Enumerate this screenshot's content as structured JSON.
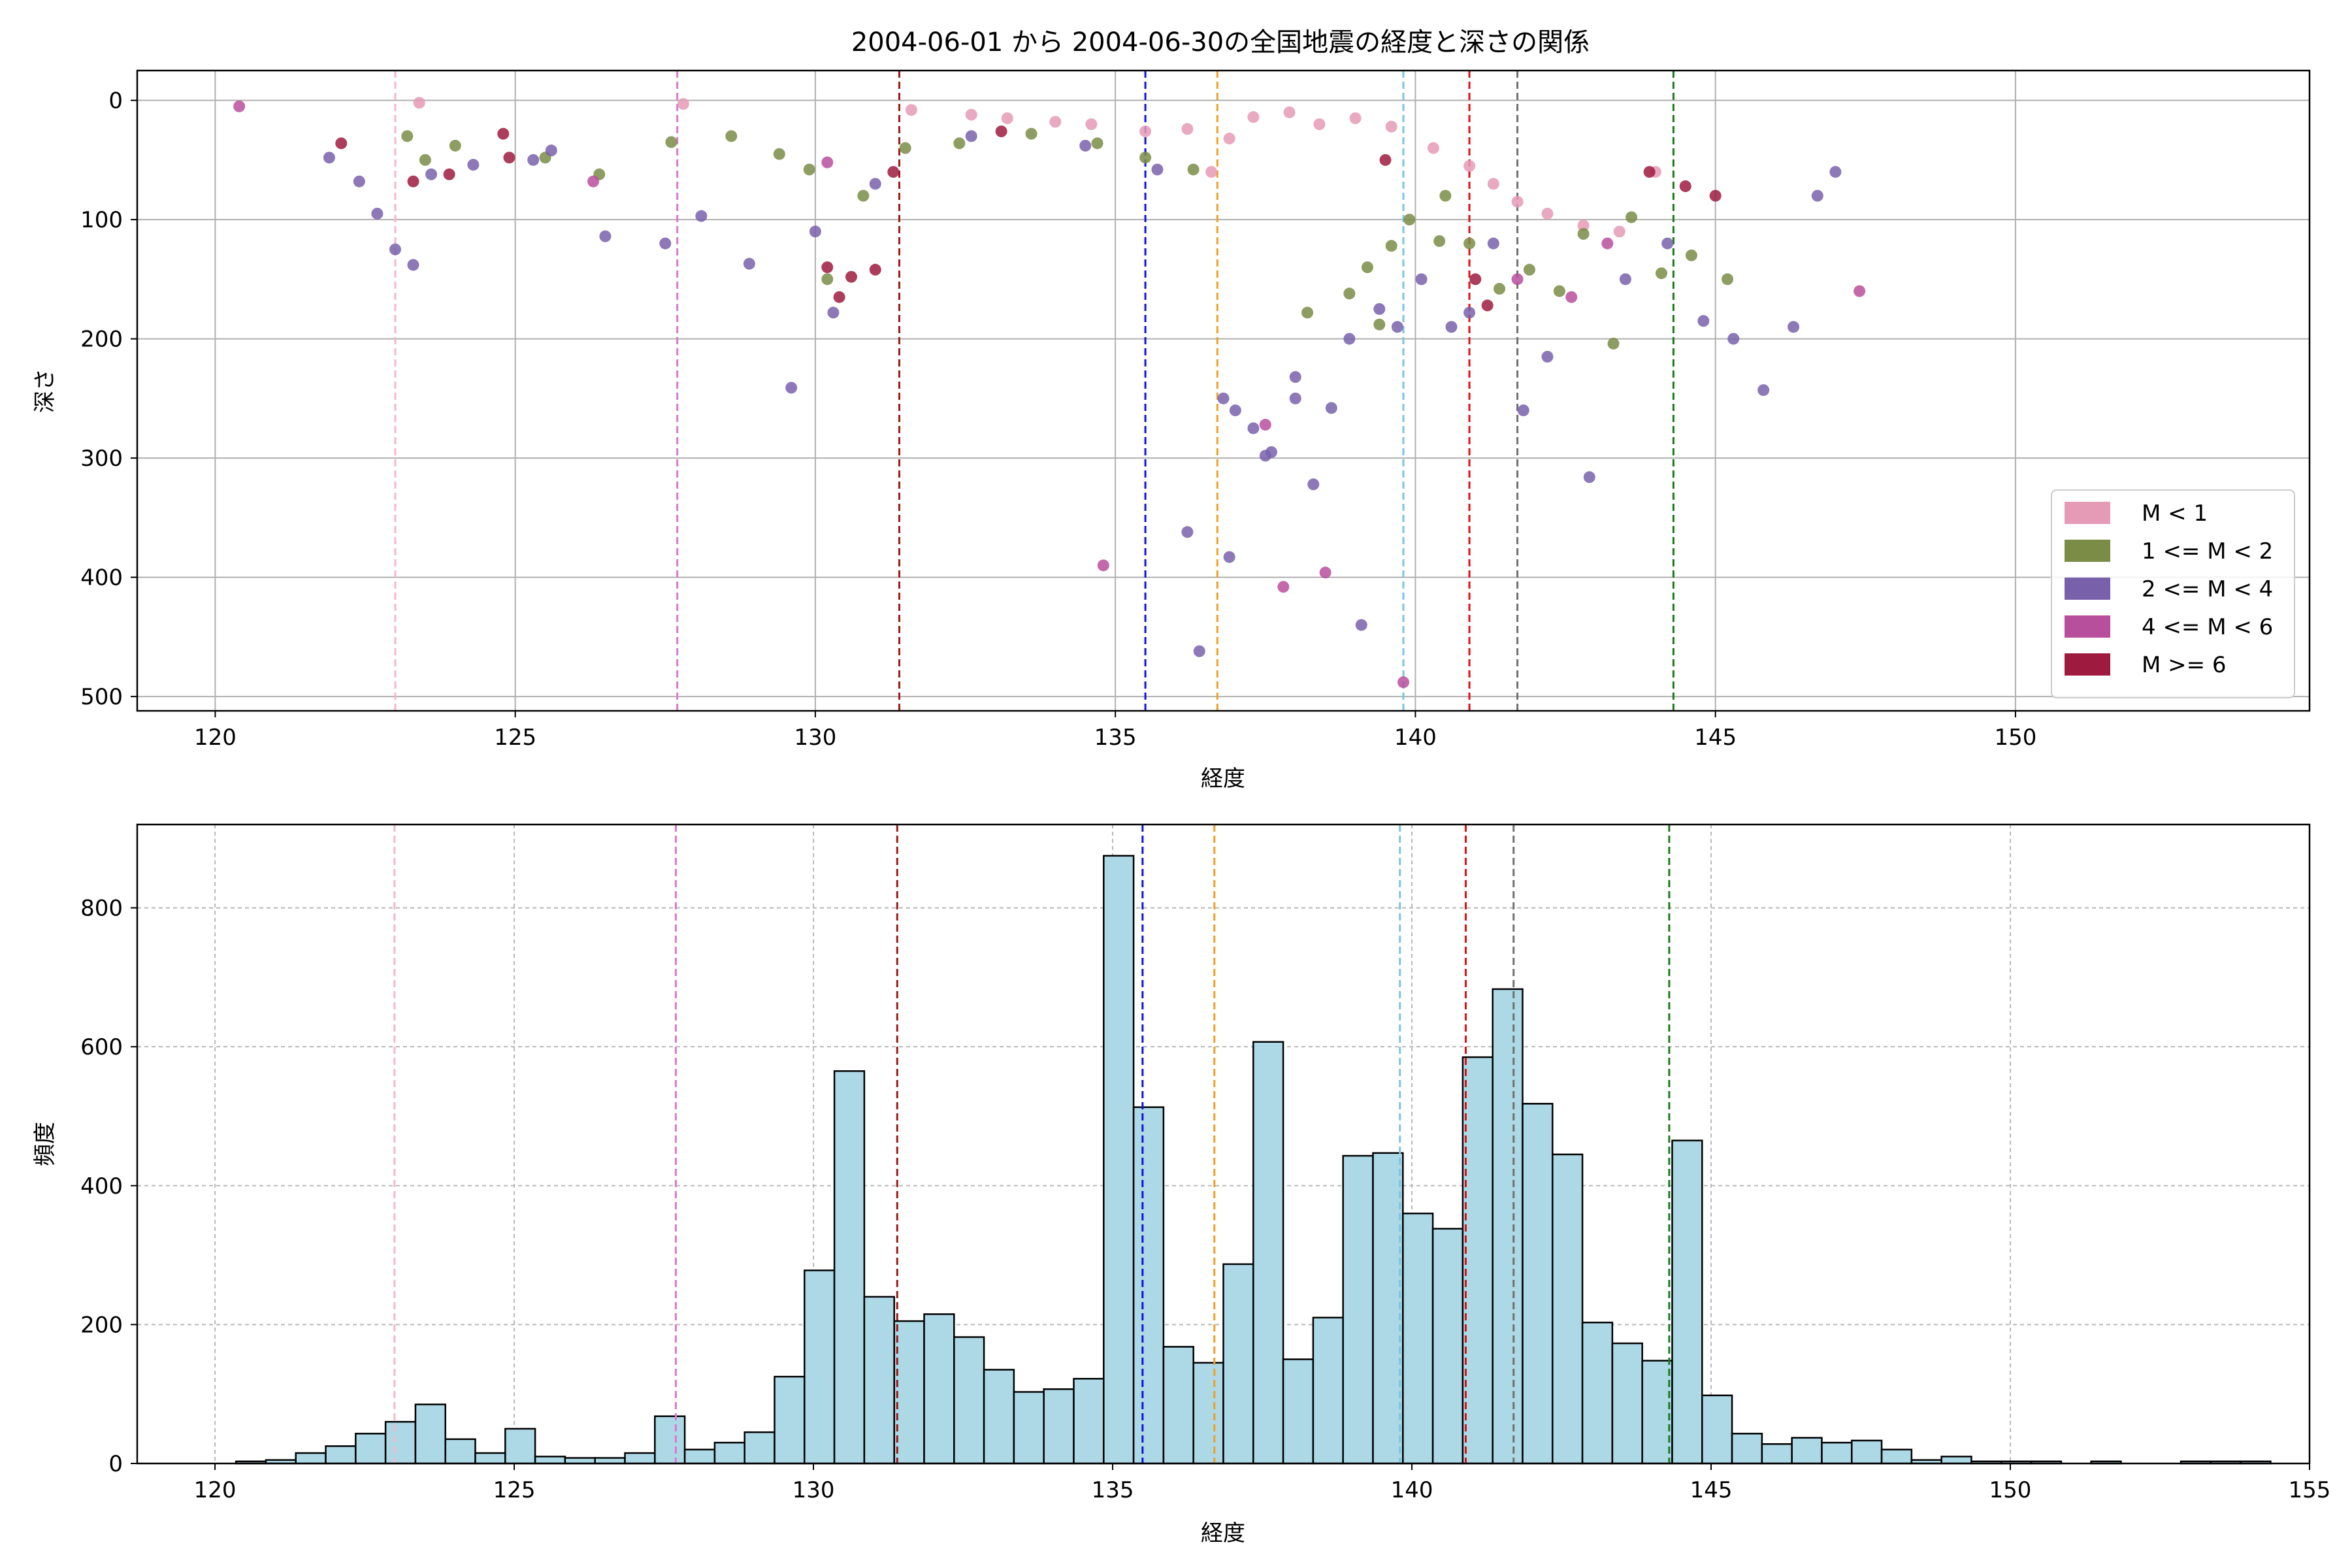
{
  "chart_data": [
    {
      "type": "scatter",
      "title": "2004-06-01 から 2004-06-30の全国地震の経度と深さの関係",
      "xlabel": "経度",
      "ylabel": "深さ",
      "xlim": [
        118.7,
        154.9
      ],
      "ylim": [
        512,
        -25
      ],
      "y_inverted": true,
      "x_ticks": [
        120,
        125,
        130,
        135,
        140,
        145,
        150
      ],
      "y_ticks": [
        0,
        100,
        200,
        300,
        400,
        500
      ],
      "grid": true,
      "legend_position": "lower-right",
      "series": [
        {
          "name": "M < 1",
          "color": "#e59ab6",
          "points": [
            [
              123.4,
              2
            ],
            [
              127.8,
              3
            ],
            [
              131.6,
              8
            ],
            [
              132.6,
              12
            ],
            [
              133.2,
              15
            ],
            [
              134.0,
              18
            ],
            [
              134.6,
              20
            ],
            [
              135.5,
              26
            ],
            [
              136.2,
              24
            ],
            [
              136.9,
              32
            ],
            [
              137.3,
              14
            ],
            [
              137.9,
              10
            ],
            [
              138.4,
              20
            ],
            [
              139.0,
              15
            ],
            [
              139.6,
              22
            ],
            [
              140.3,
              40
            ],
            [
              140.9,
              55
            ],
            [
              141.3,
              70
            ],
            [
              141.7,
              85
            ],
            [
              142.2,
              95
            ],
            [
              142.8,
              105
            ],
            [
              143.4,
              110
            ],
            [
              144.0,
              60
            ],
            [
              136.6,
              60
            ]
          ]
        },
        {
          "name": "1 <= M < 2",
          "color": "#7a8c45",
          "points": [
            [
              123.2,
              30
            ],
            [
              123.5,
              50
            ],
            [
              124.0,
              38
            ],
            [
              125.5,
              48
            ],
            [
              126.4,
              62
            ],
            [
              127.6,
              35
            ],
            [
              128.6,
              30
            ],
            [
              129.4,
              45
            ],
            [
              129.9,
              58
            ],
            [
              130.2,
              150
            ],
            [
              130.8,
              80
            ],
            [
              131.5,
              40
            ],
            [
              132.4,
              36
            ],
            [
              133.6,
              28
            ],
            [
              134.7,
              36
            ],
            [
              135.5,
              48
            ],
            [
              136.3,
              58
            ],
            [
              138.9,
              162
            ],
            [
              139.2,
              140
            ],
            [
              139.6,
              122
            ],
            [
              139.9,
              100
            ],
            [
              140.5,
              80
            ],
            [
              140.9,
              120
            ],
            [
              141.4,
              158
            ],
            [
              141.9,
              142
            ],
            [
              142.4,
              160
            ],
            [
              142.8,
              112
            ],
            [
              143.6,
              98
            ],
            [
              144.1,
              145
            ],
            [
              144.6,
              130
            ],
            [
              145.2,
              150
            ],
            [
              138.2,
              178
            ],
            [
              143.3,
              204
            ],
            [
              140.4,
              118
            ],
            [
              139.4,
              188
            ]
          ]
        },
        {
          "name": "2 <= M < 4",
          "color": "#7960ab",
          "points": [
            [
              121.9,
              48
            ],
            [
              122.4,
              68
            ],
            [
              122.7,
              95
            ],
            [
              123.0,
              125
            ],
            [
              123.3,
              138
            ],
            [
              123.6,
              62
            ],
            [
              124.3,
              54
            ],
            [
              125.3,
              50
            ],
            [
              125.6,
              42
            ],
            [
              126.5,
              114
            ],
            [
              127.5,
              120
            ],
            [
              128.1,
              97
            ],
            [
              128.9,
              137
            ],
            [
              129.6,
              241
            ],
            [
              130.0,
              110
            ],
            [
              130.3,
              178
            ],
            [
              131.0,
              70
            ],
            [
              132.6,
              30
            ],
            [
              134.5,
              38
            ],
            [
              135.7,
              58
            ],
            [
              136.2,
              362
            ],
            [
              136.4,
              462
            ],
            [
              136.9,
              383
            ],
            [
              137.3,
              275
            ],
            [
              137.6,
              295
            ],
            [
              138.0,
              250
            ],
            [
              138.3,
              322
            ],
            [
              138.6,
              258
            ],
            [
              138.9,
              200
            ],
            [
              139.1,
              440
            ],
            [
              139.4,
              175
            ],
            [
              139.7,
              190
            ],
            [
              140.1,
              150
            ],
            [
              140.6,
              190
            ],
            [
              140.9,
              178
            ],
            [
              141.3,
              120
            ],
            [
              141.8,
              260
            ],
            [
              142.2,
              215
            ],
            [
              142.9,
              316
            ],
            [
              143.5,
              150
            ],
            [
              144.2,
              120
            ],
            [
              144.8,
              185
            ],
            [
              145.3,
              200
            ],
            [
              145.8,
              243
            ],
            [
              146.3,
              190
            ],
            [
              146.7,
              80
            ],
            [
              147.0,
              60
            ],
            [
              136.8,
              250
            ],
            [
              137.0,
              260
            ],
            [
              138.0,
              232
            ],
            [
              137.5,
              298
            ]
          ]
        },
        {
          "name": "4 <= M < 6",
          "color": "#b84f9d",
          "points": [
            [
              120.4,
              5
            ],
            [
              126.3,
              68
            ],
            [
              130.2,
              52
            ],
            [
              134.8,
              390
            ],
            [
              137.5,
              272
            ],
            [
              137.8,
              408
            ],
            [
              138.5,
              396
            ],
            [
              139.8,
              488
            ],
            [
              141.7,
              150
            ],
            [
              142.6,
              165
            ],
            [
              147.4,
              160
            ],
            [
              143.2,
              120
            ]
          ]
        },
        {
          "name": "M >= 6",
          "color": "#9e1b3f",
          "points": [
            [
              122.1,
              36
            ],
            [
              123.3,
              68
            ],
            [
              123.9,
              62
            ],
            [
              124.8,
              28
            ],
            [
              124.9,
              48
            ],
            [
              130.2,
              140
            ],
            [
              130.4,
              165
            ],
            [
              130.6,
              148
            ],
            [
              131.0,
              142
            ],
            [
              133.1,
              26
            ],
            [
              139.5,
              50
            ],
            [
              141.0,
              150
            ],
            [
              141.2,
              172
            ],
            [
              143.9,
              60
            ],
            [
              144.5,
              72
            ],
            [
              145.0,
              80
            ],
            [
              131.3,
              60
            ]
          ]
        }
      ],
      "vertical_lines": [
        {
          "x": 123.0,
          "color": "#f4b8c8"
        },
        {
          "x": 127.7,
          "color": "#dd77cc"
        },
        {
          "x": 131.4,
          "color": "#a01a1a"
        },
        {
          "x": 135.5,
          "color": "#1010e0"
        },
        {
          "x": 136.7,
          "color": "#f0a020"
        },
        {
          "x": 139.8,
          "color": "#7cc4e0"
        },
        {
          "x": 140.9,
          "color": "#e01010"
        },
        {
          "x": 141.7,
          "color": "#707070"
        },
        {
          "x": 144.3,
          "color": "#1a7a1a"
        }
      ]
    },
    {
      "type": "bar",
      "xlabel": "経度",
      "ylabel": "頻度",
      "xlim": [
        118.7,
        155
      ],
      "ylim": [
        0,
        920
      ],
      "x_ticks": [
        120,
        125,
        130,
        135,
        140,
        145,
        150,
        155
      ],
      "y_ticks": [
        0,
        200,
        400,
        600,
        800
      ],
      "grid": true,
      "bar_color": "#add8e6",
      "bin_start": 120.35,
      "bin_width": 0.5,
      "values": [
        3,
        5,
        15,
        25,
        43,
        60,
        85,
        35,
        15,
        50,
        10,
        8,
        8,
        15,
        68,
        20,
        30,
        45,
        125,
        278,
        565,
        240,
        205,
        215,
        182,
        135,
        103,
        107,
        122,
        875,
        513,
        168,
        145,
        287,
        607,
        150,
        210,
        443,
        447,
        360,
        338,
        585,
        683,
        518,
        445,
        203,
        173,
        148,
        465,
        98,
        43,
        28,
        37,
        30,
        33,
        20,
        5,
        10,
        3,
        3,
        3,
        0,
        3,
        0,
        0,
        3,
        3,
        3
      ]
    }
  ],
  "legend": [
    {
      "label": "M < 1",
      "color": "#e59ab6"
    },
    {
      "label": "1 <= M < 2",
      "color": "#7a8c45"
    },
    {
      "label": "2 <= M < 4",
      "color": "#7960ab"
    },
    {
      "label": "4 <= M < 6",
      "color": "#b84f9d"
    },
    {
      "label": "M >= 6",
      "color": "#9e1b3f"
    }
  ]
}
